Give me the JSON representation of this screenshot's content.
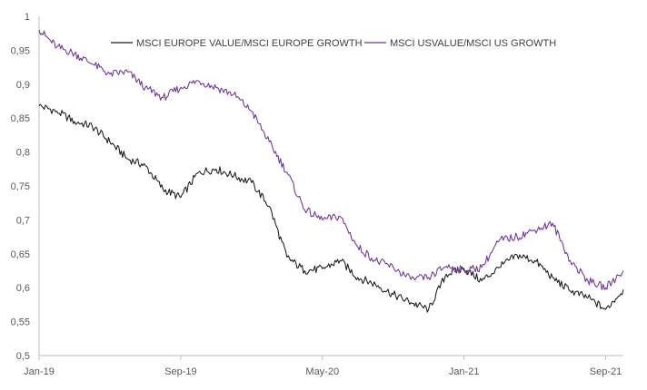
{
  "chart_data": {
    "type": "line",
    "title": "",
    "xlabel": "",
    "ylabel": "",
    "ylim": [
      0.5,
      1.0
    ],
    "xlim": [
      "2019-01",
      "2021-10"
    ],
    "grid": false,
    "legend_position": "top-center",
    "y_ticks": [
      "1",
      "0,95",
      "0,9",
      "0,85",
      "0,8",
      "0,75",
      "0,7",
      "0,65",
      "0,6",
      "0,55",
      "0,5"
    ],
    "x_ticks": [
      {
        "label": "Jan-19",
        "date": "2019-01"
      },
      {
        "label": "Sep-19",
        "date": "2019-09"
      },
      {
        "label": "May-20",
        "date": "2020-05"
      },
      {
        "label": "Jan-21",
        "date": "2021-01"
      },
      {
        "label": "Sep-21",
        "date": "2021-09"
      }
    ],
    "series": [
      {
        "name": "MSCI EUROPE VALUE/MSCI EUROPE GROWTH",
        "color": "#1a1a1a",
        "points": [
          [
            "2019-01",
            0.868
          ],
          [
            "2019-02",
            0.86
          ],
          [
            "2019-03",
            0.845
          ],
          [
            "2019-04",
            0.838
          ],
          [
            "2019-05",
            0.815
          ],
          [
            "2019-06",
            0.79
          ],
          [
            "2019-07",
            0.78
          ],
          [
            "2019-08",
            0.745
          ],
          [
            "2019-09",
            0.733
          ],
          [
            "2019-10",
            0.77
          ],
          [
            "2019-11",
            0.775
          ],
          [
            "2019-12",
            0.765
          ],
          [
            "2020-01",
            0.755
          ],
          [
            "2020-02",
            0.72
          ],
          [
            "2020-03",
            0.645
          ],
          [
            "2020-04",
            0.625
          ],
          [
            "2020-05",
            0.628
          ],
          [
            "2020-06",
            0.64
          ],
          [
            "2020-07",
            0.615
          ],
          [
            "2020-08",
            0.605
          ],
          [
            "2020-09",
            0.59
          ],
          [
            "2020-10",
            0.578
          ],
          [
            "2020-11",
            0.568
          ],
          [
            "2020-12",
            0.62
          ],
          [
            "2021-01",
            0.628
          ],
          [
            "2021-02",
            0.61
          ],
          [
            "2021-03",
            0.63
          ],
          [
            "2021-04",
            0.648
          ],
          [
            "2021-05",
            0.64
          ],
          [
            "2021-06",
            0.615
          ],
          [
            "2021-07",
            0.595
          ],
          [
            "2021-08",
            0.585
          ],
          [
            "2021-09",
            0.568
          ],
          [
            "2021-10",
            0.597
          ]
        ]
      },
      {
        "name": "MSCI USVALUE/MSCI US GROWTH",
        "color": "#7030a0",
        "points": [
          [
            "2019-01",
            0.98
          ],
          [
            "2019-02",
            0.955
          ],
          [
            "2019-03",
            0.945
          ],
          [
            "2019-04",
            0.93
          ],
          [
            "2019-05",
            0.915
          ],
          [
            "2019-06",
            0.918
          ],
          [
            "2019-07",
            0.895
          ],
          [
            "2019-08",
            0.88
          ],
          [
            "2019-09",
            0.895
          ],
          [
            "2019-10",
            0.905
          ],
          [
            "2019-11",
            0.895
          ],
          [
            "2019-12",
            0.885
          ],
          [
            "2020-01",
            0.86
          ],
          [
            "2020-02",
            0.815
          ],
          [
            "2020-03",
            0.77
          ],
          [
            "2020-04",
            0.715
          ],
          [
            "2020-05",
            0.7
          ],
          [
            "2020-06",
            0.705
          ],
          [
            "2020-07",
            0.66
          ],
          [
            "2020-08",
            0.64
          ],
          [
            "2020-09",
            0.63
          ],
          [
            "2020-10",
            0.612
          ],
          [
            "2020-11",
            0.615
          ],
          [
            "2020-12",
            0.632
          ],
          [
            "2021-01",
            0.625
          ],
          [
            "2021-02",
            0.63
          ],
          [
            "2021-03",
            0.67
          ],
          [
            "2021-04",
            0.675
          ],
          [
            "2021-05",
            0.685
          ],
          [
            "2021-06",
            0.695
          ],
          [
            "2021-07",
            0.64
          ],
          [
            "2021-08",
            0.61
          ],
          [
            "2021-09",
            0.6
          ],
          [
            "2021-10",
            0.625
          ]
        ]
      }
    ]
  }
}
